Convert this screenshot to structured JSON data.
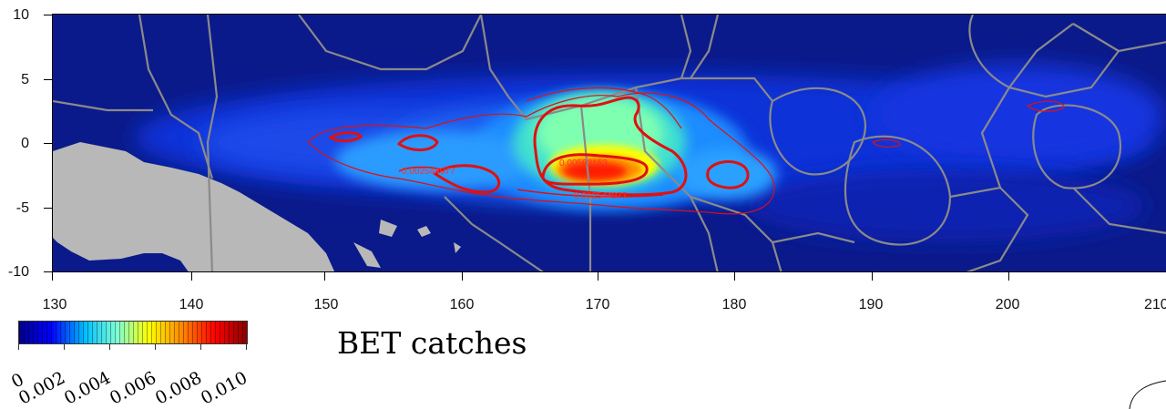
{
  "map": {
    "title": "BET catches",
    "x_axis": {
      "ticks": [
        "130",
        "140",
        "150",
        "160",
        "170",
        "180",
        "190",
        "200",
        "210"
      ],
      "range": [
        126.8,
        210.5
      ]
    },
    "y_axis": {
      "ticks": [
        "10",
        "5",
        "0",
        "-5",
        "-10"
      ],
      "range": [
        -10,
        10
      ]
    },
    "colorbar": {
      "labels": [
        "0",
        "0.002",
        "0.004",
        "0.006",
        "0.008",
        "0.010"
      ],
      "range": [
        0,
        0.01
      ],
      "colors": [
        "#00008b",
        "#0000ff",
        "#00bfff",
        "#7fffd4",
        "#ffff00",
        "#ff8c00",
        "#ff0000",
        "#8b0000"
      ]
    },
    "contour_labels": [
      {
        "text": "0.002544977"
      },
      {
        "text": "0.00593153"
      },
      {
        "text": "0.002544977"
      }
    ],
    "colors": {
      "background": "#0b1a8a",
      "land": "#b8b8b8",
      "eez_lines": "#8a8a8a",
      "contour": "#e01010"
    }
  }
}
